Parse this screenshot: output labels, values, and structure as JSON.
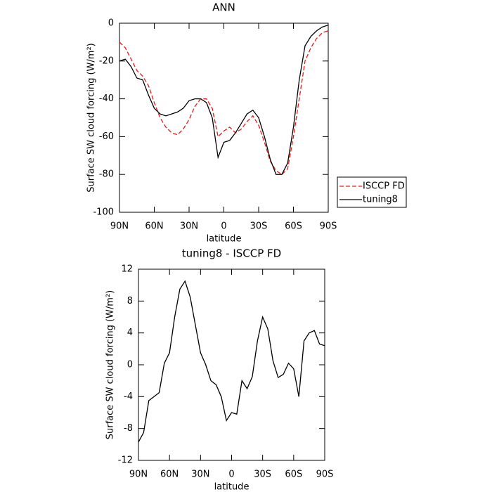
{
  "chart_data": [
    {
      "type": "line",
      "title": "ANN",
      "xlabel": "latitude",
      "ylabel": "Surface SW cloud forcing (W/m²)",
      "x": [
        90,
        85,
        80,
        75,
        70,
        65,
        60,
        55,
        50,
        45,
        40,
        35,
        30,
        25,
        20,
        15,
        10,
        5,
        0,
        -5,
        -10,
        -15,
        -20,
        -25,
        -30,
        -35,
        -40,
        -45,
        -50,
        -55,
        -60,
        -65,
        -70,
        -75,
        -80,
        -85,
        -90
      ],
      "xlim": [
        90,
        -90
      ],
      "xticks": [
        {
          "value": 90,
          "label": "90N"
        },
        {
          "value": 60,
          "label": "60N"
        },
        {
          "value": 30,
          "label": "30N"
        },
        0,
        {
          "value": -30,
          "label": "30S"
        },
        {
          "value": -60,
          "label": "60S"
        },
        {
          "value": -90,
          "label": "90S"
        }
      ],
      "ylim": [
        -100,
        0
      ],
      "yticks": [
        0,
        -20,
        -40,
        -60,
        -80,
        -100
      ],
      "legend": "right",
      "series": [
        {
          "name": "ISCCP FD",
          "color": "#e8190f",
          "dash": "dashed",
          "values": [
            -10,
            -13,
            -19,
            -25,
            -28,
            -33,
            -42,
            -50,
            -55,
            -58,
            -59,
            -56,
            -51,
            -44,
            -40,
            -40,
            -45,
            -60,
            -57,
            -55,
            -58,
            -56,
            -52,
            -49,
            -54,
            -63,
            -73,
            -78,
            -80,
            -77,
            -60,
            -40,
            -20,
            -13,
            -8,
            -5,
            -4
          ]
        },
        {
          "name": "tuning8",
          "color": "#000000",
          "dash": "solid",
          "values": [
            -20,
            -19,
            -23,
            -29,
            -30,
            -38,
            -45,
            -48,
            -49,
            -48,
            -47,
            -45,
            -41,
            -40,
            -40,
            -42,
            -50,
            -71,
            -63,
            -62,
            -58,
            -53,
            -48,
            -46,
            -50,
            -60,
            -72,
            -80,
            -80,
            -74,
            -55,
            -30,
            -12,
            -7,
            -4,
            -2,
            -1
          ]
        }
      ]
    },
    {
      "type": "line",
      "title": "tuning8 - ISCCP FD",
      "xlabel": "latitude",
      "ylabel": "Surface SW cloud forcing (W/m²)",
      "x": [
        90,
        85,
        80,
        75,
        70,
        65,
        60,
        55,
        50,
        45,
        40,
        35,
        30,
        25,
        20,
        15,
        10,
        5,
        0,
        -5,
        -10,
        -15,
        -20,
        -25,
        -30,
        -35,
        -40,
        -45,
        -50,
        -55,
        -60,
        -65,
        -70,
        -75,
        -80,
        -85,
        -90
      ],
      "xlim": [
        90,
        -90
      ],
      "xticks": [
        {
          "value": 90,
          "label": "90N"
        },
        {
          "value": 60,
          "label": "60N"
        },
        {
          "value": 30,
          "label": "30N"
        },
        0,
        {
          "value": -30,
          "label": "30S"
        },
        {
          "value": -60,
          "label": "60S"
        },
        {
          "value": -90,
          "label": "90S"
        }
      ],
      "ylim": [
        -12,
        12
      ],
      "yticks": [
        12,
        8,
        4,
        0,
        -4,
        -8,
        -12
      ],
      "color": "#000000",
      "values": [
        -9.7,
        -8.5,
        -4.5,
        -4,
        -3.5,
        0.2,
        1.5,
        6,
        9.5,
        10.5,
        8.5,
        5,
        1.5,
        0,
        -2,
        -2.5,
        -4,
        -7,
        -6,
        -6.2,
        -2,
        -3,
        -1.5,
        3,
        6,
        4.5,
        0.5,
        -1.6,
        -1.2,
        0.2,
        -0.5,
        -4,
        3,
        4,
        4.3,
        2.6,
        2.4
      ]
    }
  ]
}
